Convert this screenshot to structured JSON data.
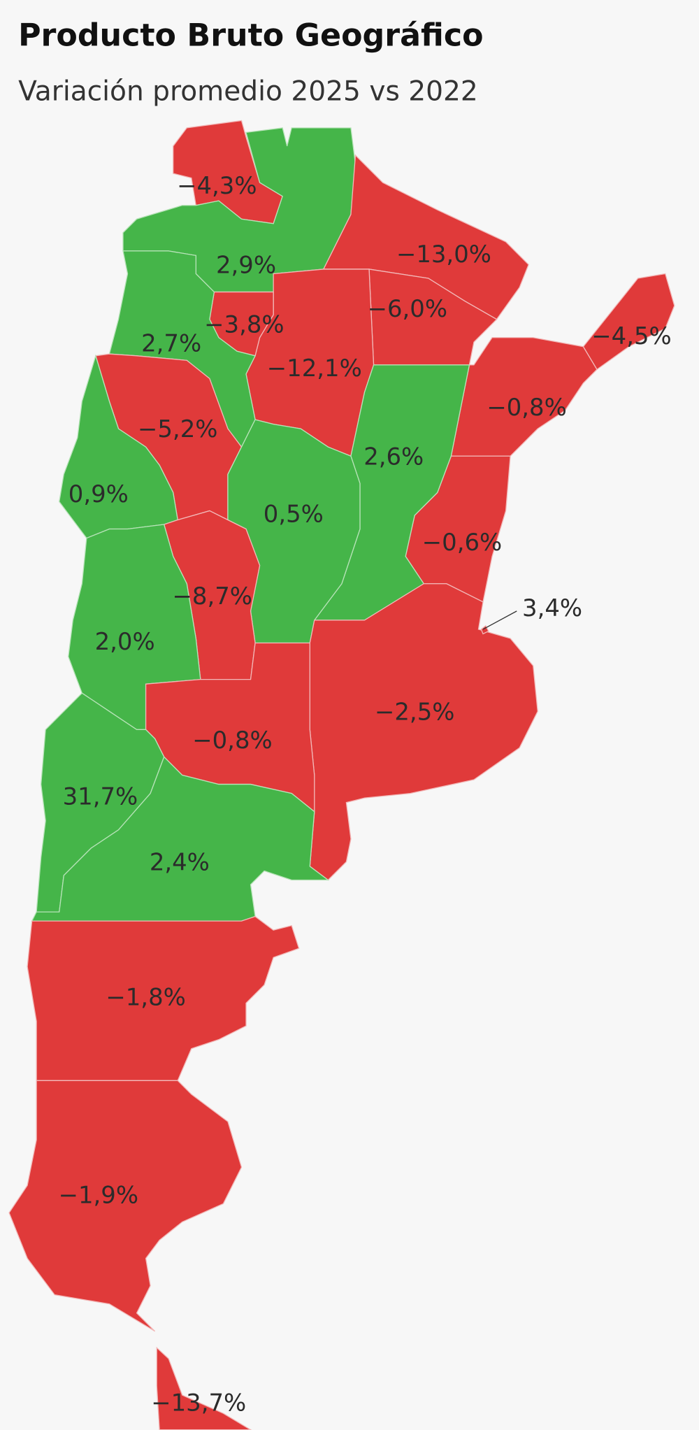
{
  "header": {
    "title": "Producto Bruto Geográfico",
    "subtitle": "Variación promedio 2025 vs 2022"
  },
  "regions": [
    "−4,3%",
    "2,9%",
    "−13,0%",
    "−6,0%",
    "−3,8%",
    "2,7%",
    "−12,1%",
    "−4,5%",
    "−0,8%",
    "−5,2%",
    "2,6%",
    "0,9%",
    "0,5%",
    "−0,6%",
    "−8,7%",
    "3,4%",
    "2,0%",
    "−2,5%",
    "−0,8%",
    "31,7%",
    "2,4%",
    "−1,8%",
    "−1,9%",
    "−13,7%"
  ]
}
